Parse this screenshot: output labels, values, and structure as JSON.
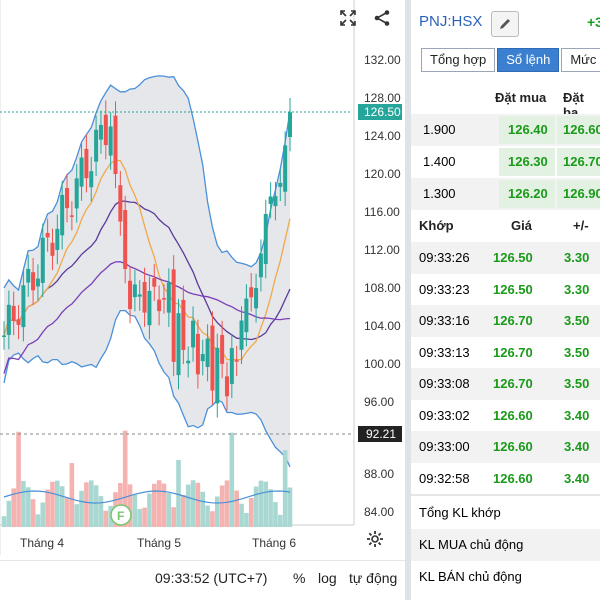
{
  "chart": {
    "price_ticks": [
      "132.00",
      "128.00",
      "124.00",
      "120.00",
      "116.00",
      "112.00",
      "108.00",
      "104.00",
      "100.00",
      "96.00"
    ],
    "volume_ticks": [
      "88.00",
      "84.00"
    ],
    "current_price_badge": "126.50",
    "lower_badge": "92.21",
    "x_labels": [
      "Tháng 4",
      "Tháng 5",
      "Tháng 6"
    ],
    "event_marker": "F",
    "expand_icon": "expand-icon",
    "share_icon": "share-icon",
    "gear_icon": "gear-icon",
    "colors": {
      "up": "#26a69a",
      "down": "#ef5350",
      "band": "#4a90d9",
      "ma_short": "#f0a94a",
      "ma_long": "#7b3fb8",
      "ma_mid": "#5b3a9c"
    }
  },
  "bottom_bar": {
    "time": "09:33:52 (UTC+7)",
    "percent": "%",
    "log": "log",
    "auto": "tự động"
  },
  "panel": {
    "symbol": "PNJ:HSX",
    "change": "+3",
    "tabs": [
      {
        "label": "Tổng hợp"
      },
      {
        "label": "Sổ lệnh"
      },
      {
        "label": "Mức g"
      }
    ],
    "orderbook": {
      "header_buy": "Đặt mua",
      "header_sell": "Đặt ba",
      "rows": [
        {
          "vol": "1.900",
          "buy": "126.40",
          "sell": "126.60"
        },
        {
          "vol": "1.400",
          "buy": "126.30",
          "sell": "126.70"
        },
        {
          "vol": "1.300",
          "buy": "126.20",
          "sell": "126.90"
        }
      ]
    },
    "trades": {
      "h_time": "Khớp",
      "h_price": "Giá",
      "h_change": "+/-",
      "rows": [
        {
          "time": "09:33:26",
          "price": "126.50",
          "change": "3.30"
        },
        {
          "time": "09:33:23",
          "price": "126.50",
          "change": "3.30"
        },
        {
          "time": "09:33:16",
          "price": "126.70",
          "change": "3.50"
        },
        {
          "time": "09:33:13",
          "price": "126.70",
          "change": "3.50"
        },
        {
          "time": "09:33:08",
          "price": "126.70",
          "change": "3.50"
        },
        {
          "time": "09:33:02",
          "price": "126.60",
          "change": "3.40"
        },
        {
          "time": "09:33:00",
          "price": "126.60",
          "change": "3.40"
        },
        {
          "time": "09:32:58",
          "price": "126.60",
          "change": "3.40"
        }
      ]
    },
    "summary": [
      {
        "label": "Tổng KL khớp"
      },
      {
        "label": "KL MUA chủ động"
      },
      {
        "label": "KL BÁN chủ động"
      }
    ]
  }
}
